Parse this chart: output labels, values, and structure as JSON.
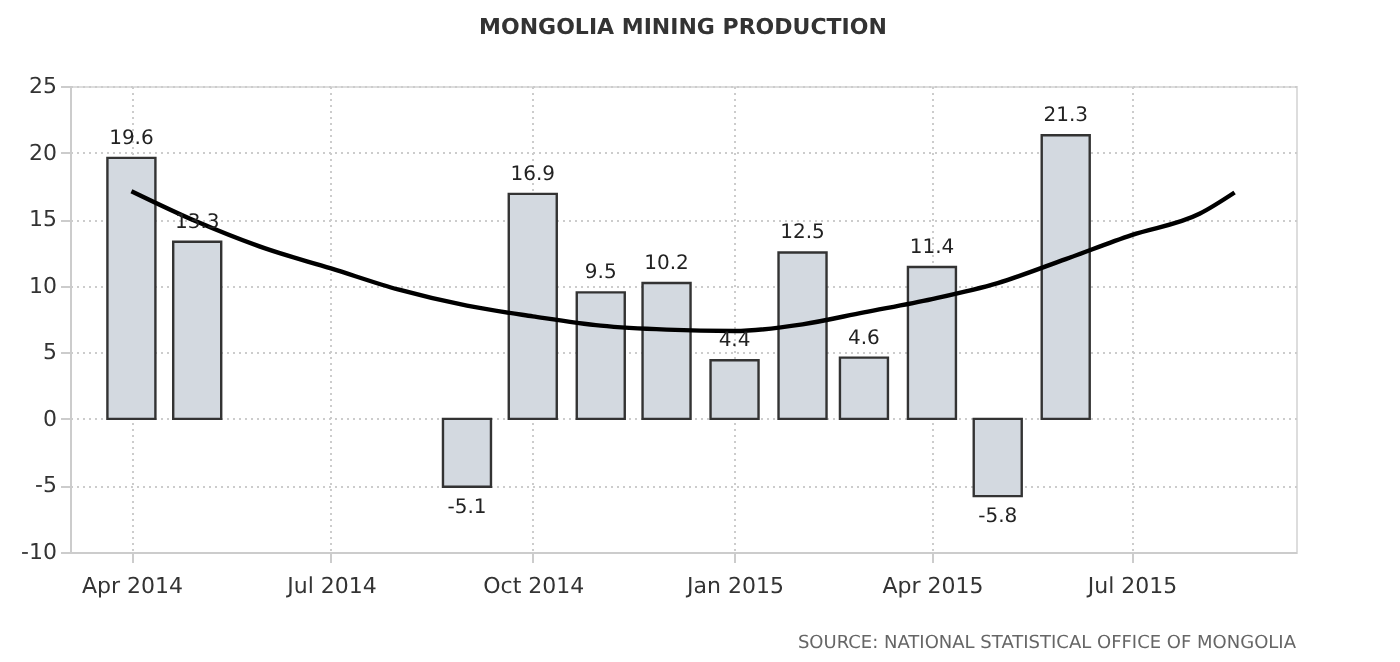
{
  "chart_data": {
    "type": "bar",
    "title": "MONGOLIA MINING PRODUCTION",
    "x": [
      "2014-04",
      "2014-05",
      "2014-09",
      "2014-10",
      "2014-11",
      "2014-12",
      "2015-01",
      "2015-02",
      "2015-03",
      "2015-04",
      "2015-05",
      "2015-06"
    ],
    "series": [
      {
        "color": "#d3d9e0",
        "values": [
          19.6,
          13.3,
          -5.1,
          16.9,
          9.5,
          10.2,
          4.4,
          12.5,
          4.6,
          11.4,
          -5.8,
          21.3
        ],
        "value_labels": [
          "19.6",
          "13.3",
          "-5.1",
          "16.9",
          "9.5",
          "10.2",
          "4.4",
          "12.5",
          "4.6",
          "11.4",
          "-5.8",
          "21.3"
        ]
      },
      {
        "type": "line",
        "color": "#000000",
        "x": [
          "2014-04",
          "2014-05",
          "2014-06",
          "2014-07",
          "2014-08",
          "2014-09",
          "2014-10",
          "2014-11",
          "2014-12",
          "2015-01",
          "2015-02",
          "2015-03",
          "2015-04",
          "2015-05",
          "2015-06",
          "2015-07",
          "2015-08",
          "2015-08-17"
        ],
        "values": [
          17.1,
          14.8,
          12.8,
          11.3,
          9.7,
          8.5,
          7.7,
          7.0,
          6.7,
          6.6,
          7.1,
          8.0,
          9.0,
          10.2,
          12.0,
          13.8,
          15.4,
          17.0
        ]
      }
    ],
    "xlim": [
      "2014-03-04",
      "2015-09-14"
    ],
    "xticks": [
      {
        "value": "2014-04",
        "label": "Apr 2014"
      },
      {
        "value": "2014-07",
        "label": "Jul 2014"
      },
      {
        "value": "2014-10",
        "label": "Oct 2014"
      },
      {
        "value": "2015-01",
        "label": "Jan 2015"
      },
      {
        "value": "2015-04",
        "label": "Apr 2015"
      },
      {
        "value": "2015-07",
        "label": "Jul 2015"
      }
    ],
    "ylim": [
      -10,
      25
    ],
    "yticks": [
      -10,
      -5,
      0,
      5,
      10,
      15,
      20,
      25
    ],
    "grid": true,
    "annotations": [
      "SOURCE: NATIONAL STATISTICAL OFFICE OF MONGOLIA"
    ]
  }
}
